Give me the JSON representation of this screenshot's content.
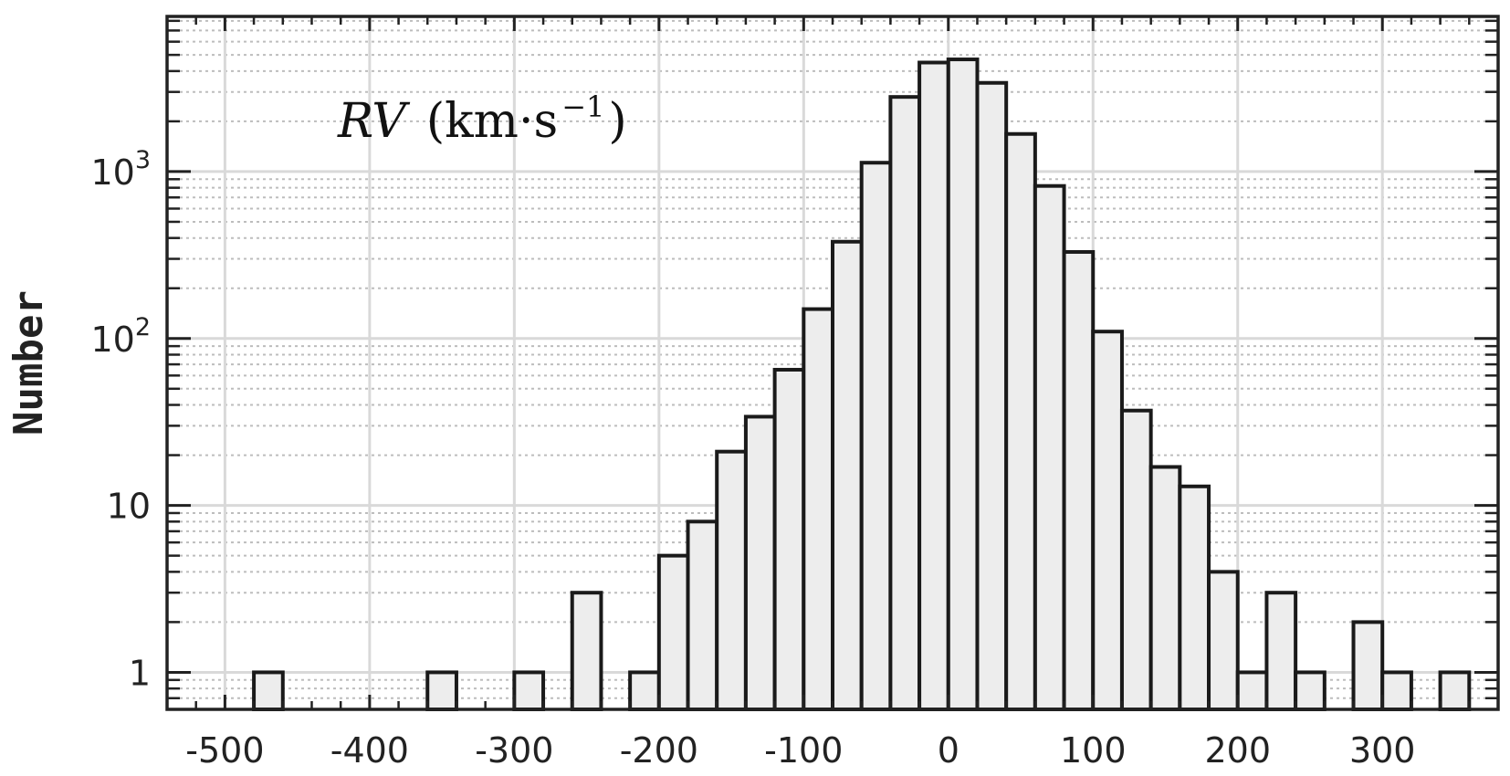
{
  "chart_data": {
    "type": "bar",
    "annotation": {
      "main": "RV",
      "unit": "(km·s",
      "exp": "−1",
      "close": ")"
    },
    "xlabel": "",
    "ylabel": "Number",
    "yscale": "log",
    "xlim": [
      -540,
      380
    ],
    "ylim": [
      0.6,
      8500
    ],
    "x_ticks": [
      -500,
      -400,
      -300,
      -200,
      -100,
      0,
      100,
      200,
      300
    ],
    "x_tick_labels": [
      "-500",
      "-400",
      "-300",
      "-200",
      "-100",
      "0",
      "100",
      "200",
      "300"
    ],
    "y_ticks": [
      1,
      10,
      100,
      1000
    ],
    "y_tick_labels": [
      {
        "base": "1",
        "exp": ""
      },
      {
        "base": "10",
        "exp": ""
      },
      {
        "base": "10",
        "exp": "2"
      },
      {
        "base": "10",
        "exp": "3"
      }
    ],
    "grid": true,
    "bin_width": 20,
    "bin_starts": [
      -480,
      -360,
      -300,
      -260,
      -220,
      -200,
      -180,
      -160,
      -140,
      -120,
      -100,
      -80,
      -60,
      -40,
      -20,
      0,
      20,
      40,
      60,
      80,
      100,
      120,
      140,
      160,
      180,
      200,
      220,
      240,
      280,
      300,
      340
    ],
    "values": [
      1,
      1,
      1,
      3,
      1,
      5,
      8,
      21,
      34,
      65,
      150,
      380,
      1130,
      2800,
      4500,
      4700,
      3400,
      1680,
      820,
      330,
      110,
      37,
      17,
      13,
      4,
      1,
      3,
      1,
      2,
      1,
      1
    ],
    "colors": {
      "bar_fill": "#ededed",
      "bar_edge": "#1a1a1a",
      "grid_major": "#d9d9d9",
      "grid_minor": "#bdbdbd",
      "axis": "#222222"
    }
  }
}
